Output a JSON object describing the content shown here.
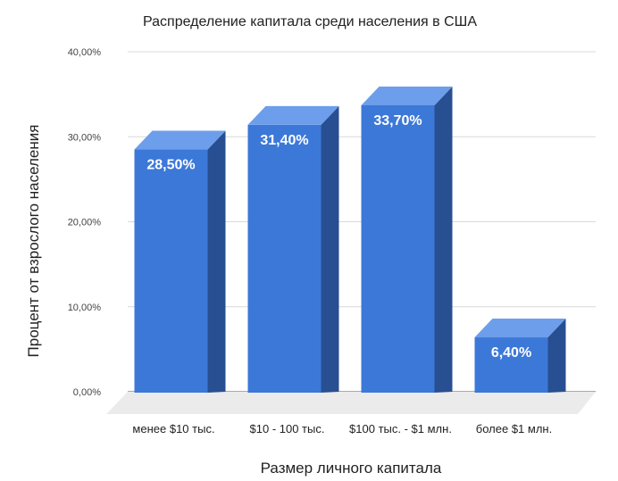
{
  "chart_data": {
    "type": "bar",
    "title": "Распределение капитала среди населения в США",
    "xlabel": "Размер личного капитала",
    "ylabel": "Процент от взрослого населения",
    "categories": [
      "менее $10 тыс.",
      "$10  - 100 тыс.",
      "$100 тыс. - $1 млн.",
      "более $1 млн."
    ],
    "values": [
      28.5,
      31.4,
      33.7,
      6.4
    ],
    "data_labels": [
      "28,50%",
      "31,40%",
      "33,70%",
      "6,40%"
    ],
    "ylim": [
      0,
      40
    ],
    "yticks": [
      0,
      10,
      20,
      30,
      40
    ],
    "ytick_labels": [
      "0,00%",
      "10,00%",
      "20,00%",
      "30,00%",
      "40,00%"
    ],
    "grid": true,
    "legend": "none",
    "style": "3d-bar",
    "colors": {
      "bar_front": "#3c78d8",
      "bar_top": "#6d9eeb",
      "bar_side": "#284f91",
      "grid": "#d9d9d9",
      "floor": "#ebebeb"
    }
  }
}
